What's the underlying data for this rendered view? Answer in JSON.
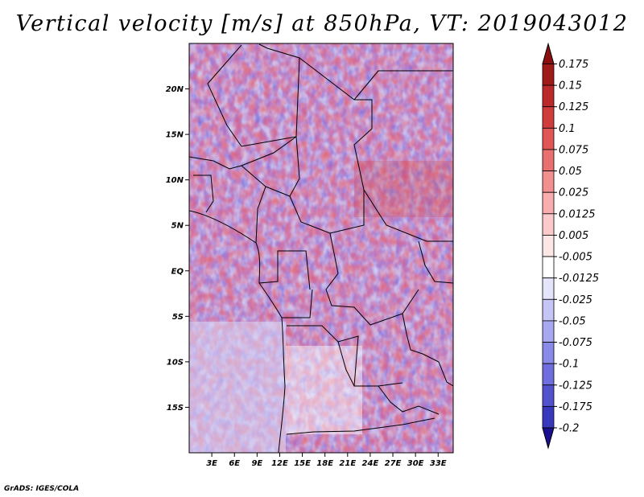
{
  "chart_data": {
    "type": "heatmap",
    "title": "Vertical velocity [m/s] at 850hPa, VT: 2019043012",
    "xlabel": "",
    "ylabel": "",
    "x_range": [
      0,
      35
    ],
    "y_range": [
      -20,
      25
    ],
    "x_ticks": [
      {
        "value": 3,
        "label": "3E"
      },
      {
        "value": 6,
        "label": "6E"
      },
      {
        "value": 9,
        "label": "9E"
      },
      {
        "value": 12,
        "label": "12E"
      },
      {
        "value": 15,
        "label": "15E"
      },
      {
        "value": 18,
        "label": "18E"
      },
      {
        "value": 21,
        "label": "21E"
      },
      {
        "value": 24,
        "label": "24E"
      },
      {
        "value": 27,
        "label": "27E"
      },
      {
        "value": 30,
        "label": "30E"
      },
      {
        "value": 33,
        "label": "33E"
      }
    ],
    "y_ticks": [
      {
        "value": 20,
        "label": "20N"
      },
      {
        "value": 15,
        "label": "15N"
      },
      {
        "value": 10,
        "label": "10N"
      },
      {
        "value": 5,
        "label": "5N"
      },
      {
        "value": 0,
        "label": "EQ"
      },
      {
        "value": -5,
        "label": "5S"
      },
      {
        "value": -10,
        "label": "10S"
      },
      {
        "value": -15,
        "label": "15S"
      }
    ],
    "colorbar": {
      "levels": [
        {
          "label": "0.175",
          "color": "#a01a1a"
        },
        {
          "label": "0.15",
          "color": "#bb2a2a"
        },
        {
          "label": "0.125",
          "color": "#d03c3c"
        },
        {
          "label": "0.1",
          "color": "#e05555"
        },
        {
          "label": "0.075",
          "color": "#ea7070"
        },
        {
          "label": "0.05",
          "color": "#f28f8f"
        },
        {
          "label": "0.025",
          "color": "#f8aeae"
        },
        {
          "label": "0.0125",
          "color": "#fccaca"
        },
        {
          "label": "0.005",
          "color": "#fde6e6"
        },
        {
          "label": "-0.005",
          "color": "#ffffff"
        },
        {
          "label": "-0.0125",
          "color": "#e4e4fb"
        },
        {
          "label": "-0.025",
          "color": "#c6c6f6"
        },
        {
          "label": "-0.05",
          "color": "#a8a8f0"
        },
        {
          "label": "-0.075",
          "color": "#8a8ae8"
        },
        {
          "label": "-0.1",
          "color": "#6e6ede"
        },
        {
          "label": "-0.125",
          "color": "#5252cf"
        },
        {
          "label": "-0.175",
          "color": "#3838bd"
        },
        {
          "label": "-0.2",
          "color": "#2020a6"
        }
      ],
      "top_arrow_color": "#8b0f0f",
      "bottom_arrow_color": "#1a0f8e"
    }
  },
  "footer": {
    "credit": "GrADS: IGES/COLA"
  }
}
